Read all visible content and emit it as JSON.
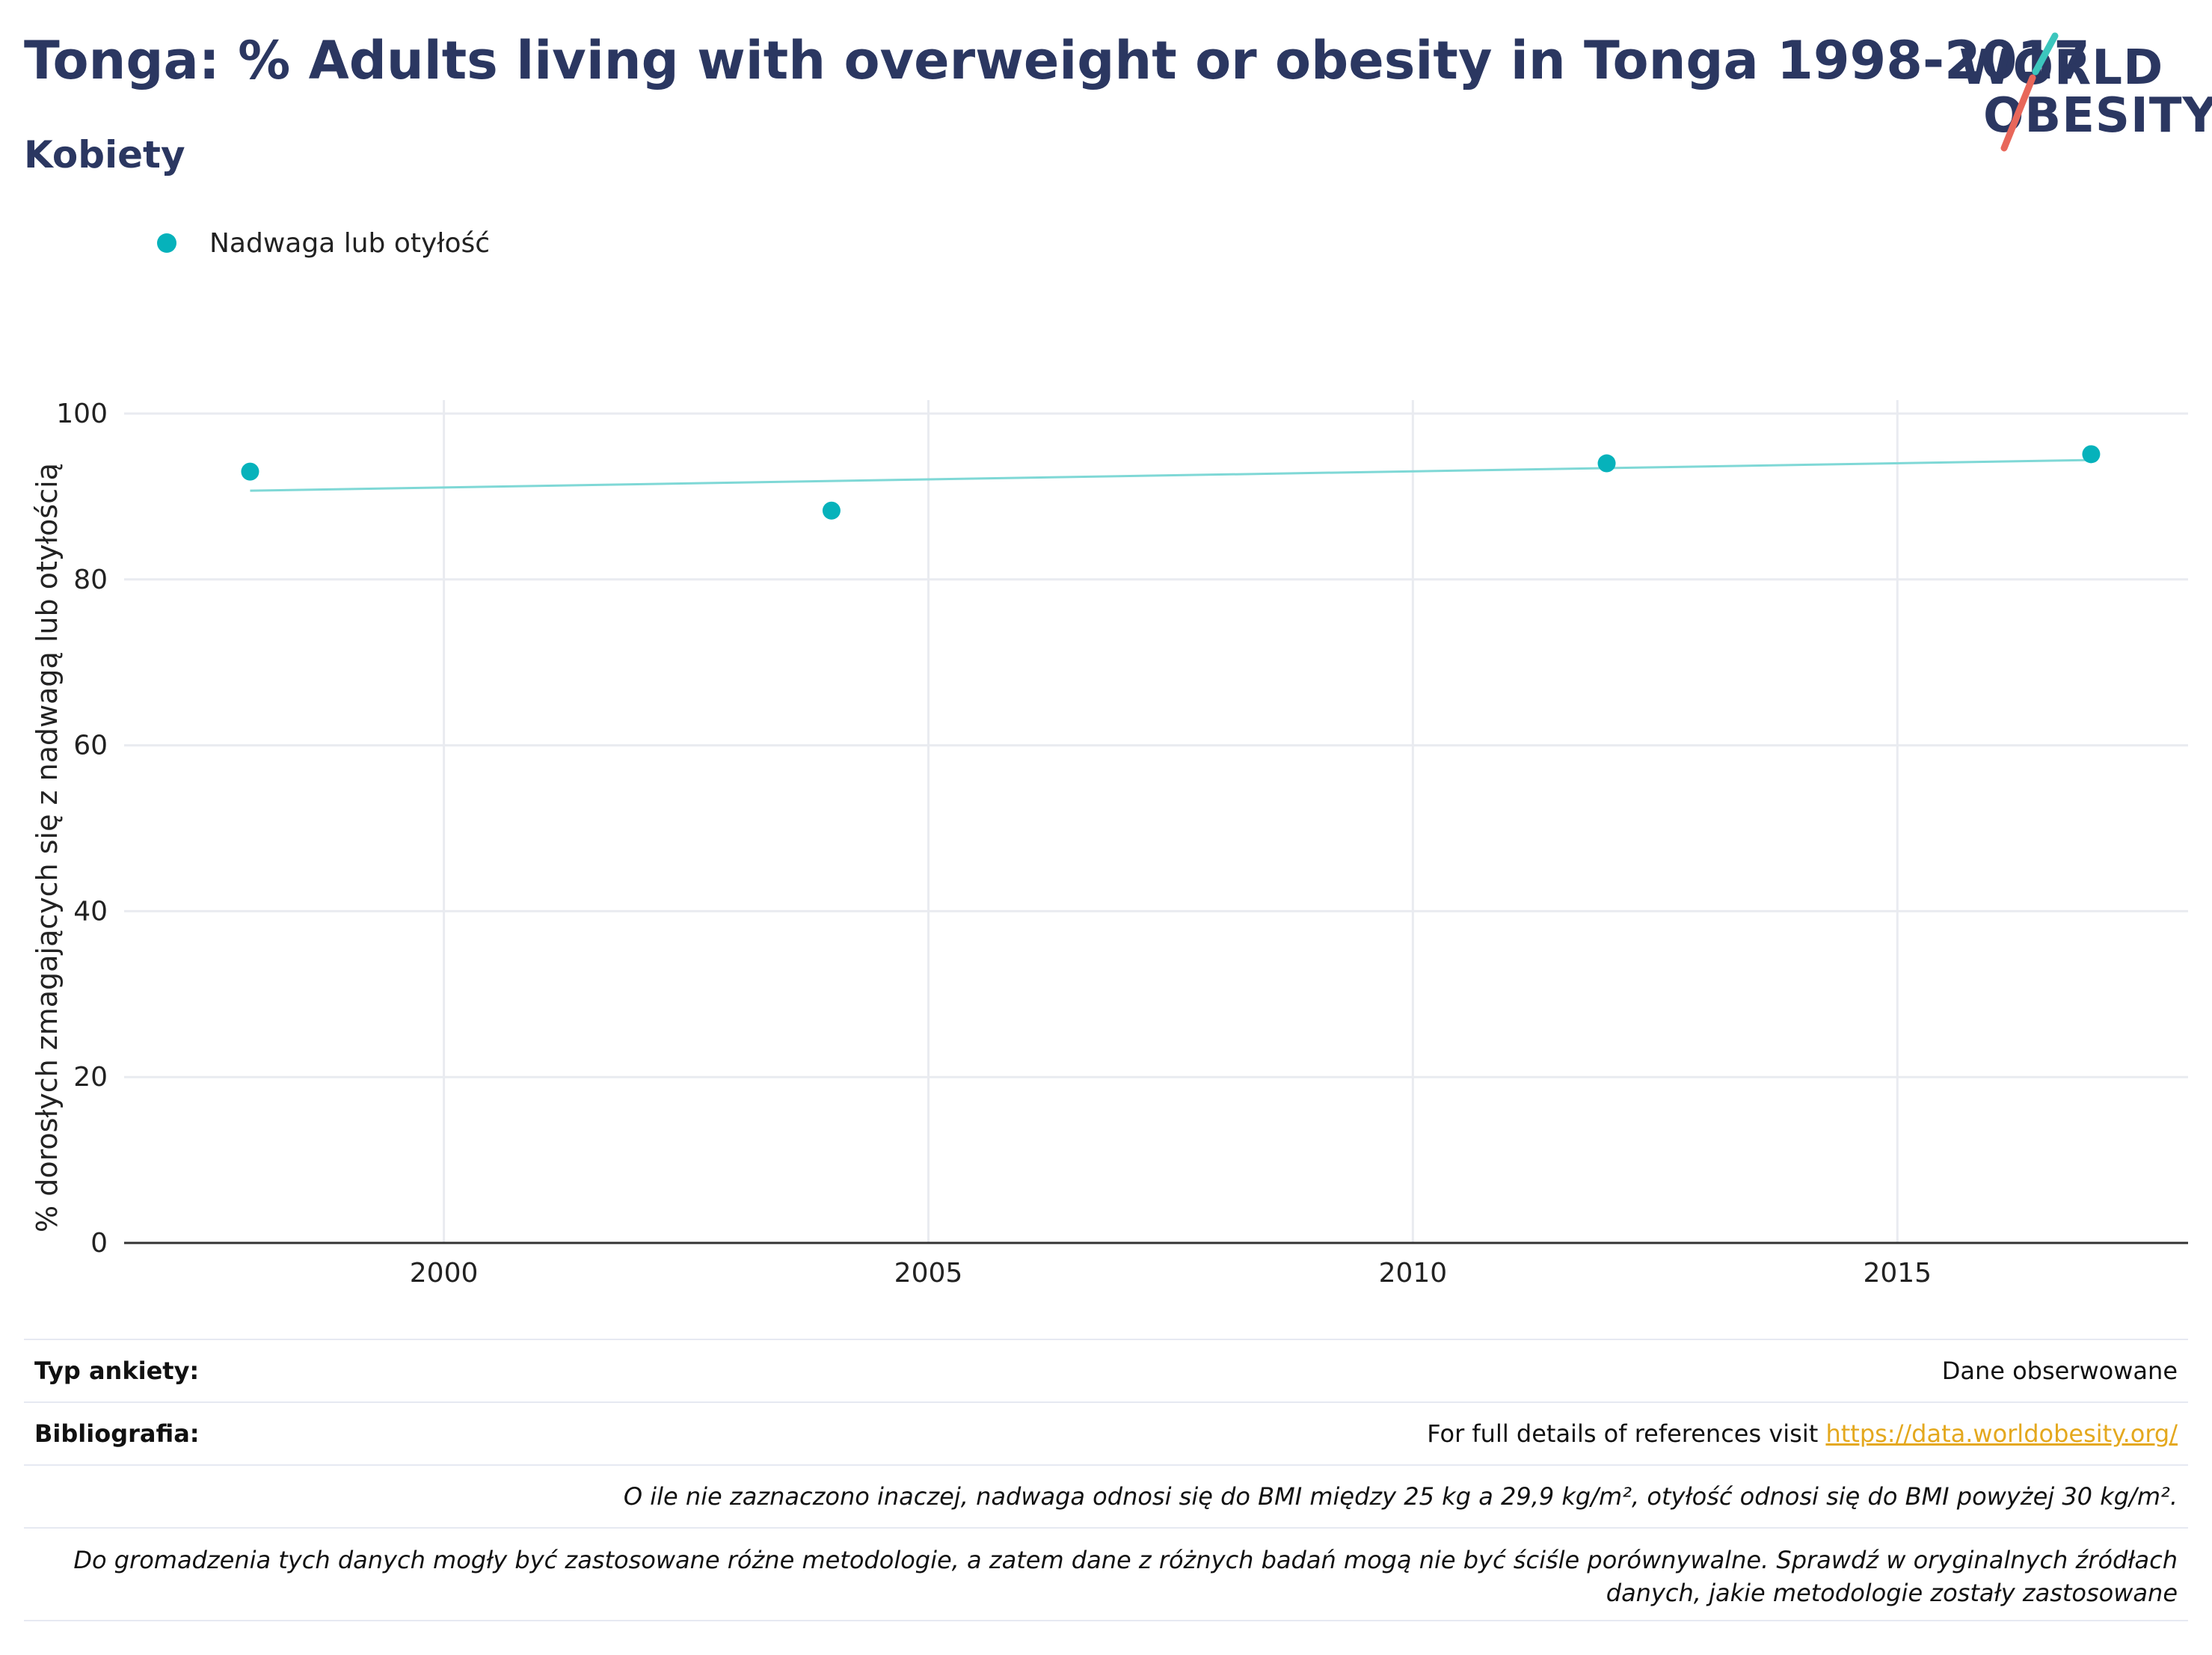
{
  "header": {
    "title": "Tonga: % Adults living with overweight or obesity in Tonga 1998-2017",
    "subtitle": "Kobiety"
  },
  "logo": {
    "line1": "WORLD",
    "line2": "OBESITY",
    "accent_teal": "#3cc6bd",
    "accent_red": "#e8675a"
  },
  "legend": {
    "label": "Nadwaga lub otyłość",
    "color": "#06b2bb"
  },
  "chart_data": {
    "type": "scatter",
    "title": "Tonga: % Adults living with overweight or obesity in Tonga 1998-2017",
    "ylabel": "% dorosłych zmagających się z nadwagą lub otyłością",
    "xlabel": "",
    "xlim": [
      1996.7,
      2018.0
    ],
    "ylim": [
      0,
      100
    ],
    "x_ticks": [
      2000,
      2005,
      2010,
      2015
    ],
    "y_ticks": [
      0,
      20,
      40,
      60,
      80,
      100
    ],
    "grid": true,
    "series": [
      {
        "name": "Nadwaga lub otyłość",
        "color": "#06b2bb",
        "points": [
          {
            "x": 1998,
            "y": 93.0
          },
          {
            "x": 2004,
            "y": 88.3
          },
          {
            "x": 2012,
            "y": 94.0
          },
          {
            "x": 2017,
            "y": 95.1
          }
        ]
      }
    ],
    "trendline": {
      "color": "#7fd8d6",
      "x": [
        1998,
        2017
      ],
      "y": [
        90.7,
        94.4
      ]
    }
  },
  "footer": {
    "survey_type_label": "Typ ankiety:",
    "survey_type_value": "Dane obserwowane",
    "bibliography_label": "Bibliografia:",
    "bibliography_text": "For full details of references visit ",
    "bibliography_link": "https://data.worldobesity.org/",
    "note1": "O ile nie zaznaczono inaczej, nadwaga odnosi się do BMI między 25 kg a 29,9 kg/m², otyłość odnosi się do BMI powyżej 30 kg/m².",
    "note2": "Do gromadzenia tych danych mogły być zastosowane różne metodologie, a zatem dane z różnych badań mogą nie być ściśle porównywalne. Sprawdź w oryginalnych źródłach danych, jakie metodologie zostały zastosowane"
  }
}
